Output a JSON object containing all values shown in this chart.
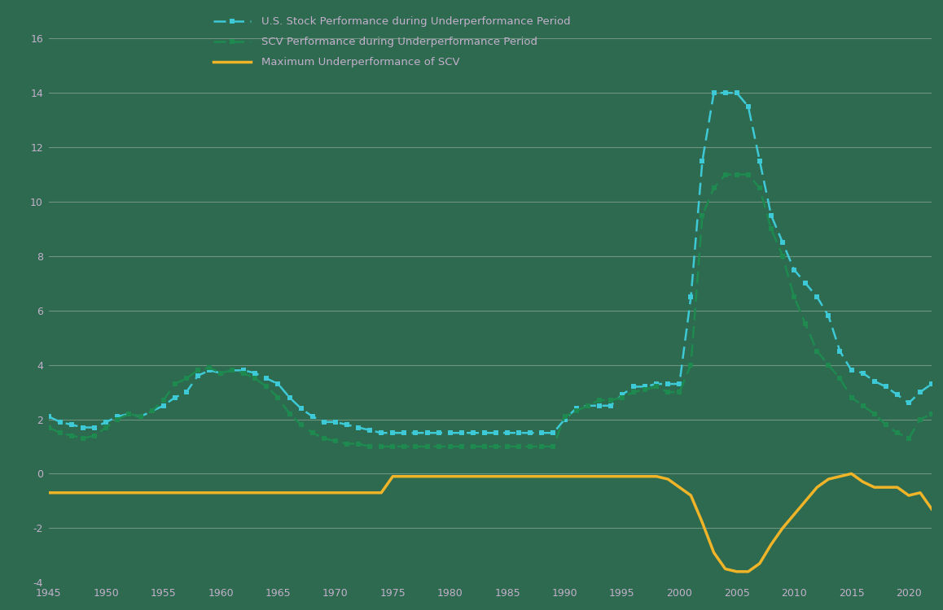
{
  "background_color": "#2d6a4f",
  "xlim": [
    1945,
    2022
  ],
  "ylim": [
    -4,
    17
  ],
  "yticks": [
    -4,
    -2,
    0,
    2,
    4,
    6,
    8,
    10,
    12,
    14,
    16
  ],
  "xticks": [
    1945,
    1950,
    1955,
    1960,
    1965,
    1970,
    1975,
    1980,
    1985,
    1990,
    1995,
    2000,
    2005,
    2010,
    2015,
    2020
  ],
  "us_stock_color": "#3ec9d6",
  "scv_color": "#1e8a50",
  "max_under_color": "#f0b429",
  "grid_color": "#a8b8a8",
  "text_color": "#c4b0cc",
  "legend_labels": [
    "U.S. Stock Performance during Underperformance Period",
    "SCV Performance during Underperformance Period",
    "Maximum Underperformance of SCV"
  ],
  "us_stock_x": [
    1945,
    1946,
    1947,
    1948,
    1949,
    1950,
    1951,
    1952,
    1953,
    1954,
    1955,
    1956,
    1957,
    1958,
    1959,
    1960,
    1961,
    1962,
    1963,
    1964,
    1965,
    1966,
    1967,
    1968,
    1969,
    1970,
    1971,
    1972,
    1973,
    1974,
    1975,
    1976,
    1977,
    1978,
    1979,
    1980,
    1981,
    1982,
    1983,
    1984,
    1985,
    1986,
    1987,
    1988,
    1989,
    1990,
    1991,
    1992,
    1993,
    1994,
    1995,
    1996,
    1997,
    1998,
    1999,
    2000,
    2001,
    2002,
    2003,
    2004,
    2005,
    2006,
    2007,
    2008,
    2009,
    2010,
    2011,
    2012,
    2013,
    2014,
    2015,
    2016,
    2017,
    2018,
    2019,
    2020,
    2021,
    2022
  ],
  "us_stock_y": [
    2.1,
    1.9,
    1.8,
    1.7,
    1.7,
    1.9,
    2.1,
    2.2,
    2.1,
    2.3,
    2.5,
    2.8,
    3.0,
    3.6,
    3.8,
    3.7,
    3.8,
    3.8,
    3.7,
    3.5,
    3.3,
    2.8,
    2.4,
    2.1,
    1.9,
    1.9,
    1.8,
    1.7,
    1.6,
    1.5,
    1.5,
    1.5,
    1.5,
    1.5,
    1.5,
    1.5,
    1.5,
    1.5,
    1.5,
    1.5,
    1.5,
    1.5,
    1.5,
    1.5,
    1.5,
    2.0,
    2.4,
    2.5,
    2.5,
    2.5,
    2.9,
    3.2,
    3.2,
    3.3,
    3.3,
    3.3,
    6.5,
    11.5,
    14.0,
    14.0,
    14.0,
    13.5,
    11.5,
    9.5,
    8.5,
    7.5,
    7.0,
    6.5,
    5.8,
    4.5,
    3.8,
    3.7,
    3.4,
    3.2,
    2.9,
    2.6,
    3.0,
    3.3
  ],
  "scv_x": [
    1945,
    1946,
    1947,
    1948,
    1949,
    1950,
    1951,
    1952,
    1953,
    1954,
    1955,
    1956,
    1957,
    1958,
    1959,
    1960,
    1961,
    1962,
    1963,
    1964,
    1965,
    1966,
    1967,
    1968,
    1969,
    1970,
    1971,
    1972,
    1973,
    1974,
    1975,
    1976,
    1977,
    1978,
    1979,
    1980,
    1981,
    1982,
    1983,
    1984,
    1985,
    1986,
    1987,
    1988,
    1989,
    1990,
    1991,
    1992,
    1993,
    1994,
    1995,
    1996,
    1997,
    1998,
    1999,
    2000,
    2001,
    2002,
    2003,
    2004,
    2005,
    2006,
    2007,
    2008,
    2009,
    2010,
    2011,
    2012,
    2013,
    2014,
    2015,
    2016,
    2017,
    2018,
    2019,
    2020,
    2021,
    2022
  ],
  "scv_y": [
    1.7,
    1.5,
    1.4,
    1.3,
    1.4,
    1.7,
    2.0,
    2.2,
    2.1,
    2.3,
    2.7,
    3.3,
    3.5,
    3.8,
    3.9,
    3.7,
    3.8,
    3.7,
    3.5,
    3.2,
    2.8,
    2.2,
    1.8,
    1.5,
    1.3,
    1.2,
    1.1,
    1.1,
    1.0,
    1.0,
    1.0,
    1.0,
    1.0,
    1.0,
    1.0,
    1.0,
    1.0,
    1.0,
    1.0,
    1.0,
    1.0,
    1.0,
    1.0,
    1.0,
    1.0,
    2.1,
    2.3,
    2.5,
    2.7,
    2.7,
    2.8,
    3.0,
    3.1,
    3.2,
    3.0,
    3.0,
    4.0,
    9.5,
    10.5,
    11.0,
    11.0,
    11.0,
    10.5,
    9.0,
    8.0,
    6.5,
    5.5,
    4.5,
    4.0,
    3.5,
    2.8,
    2.5,
    2.2,
    1.8,
    1.5,
    1.3,
    2.0,
    2.2
  ],
  "max_under_x": [
    1945,
    1946,
    1947,
    1948,
    1949,
    1950,
    1951,
    1952,
    1953,
    1954,
    1955,
    1956,
    1957,
    1958,
    1959,
    1960,
    1961,
    1962,
    1963,
    1964,
    1965,
    1966,
    1967,
    1968,
    1969,
    1970,
    1971,
    1972,
    1973,
    1974,
    1975,
    1976,
    1977,
    1978,
    1979,
    1980,
    1981,
    1982,
    1983,
    1984,
    1985,
    1986,
    1987,
    1988,
    1989,
    1990,
    1991,
    1992,
    1993,
    1994,
    1995,
    1996,
    1997,
    1998,
    1999,
    2000,
    2001,
    2002,
    2003,
    2004,
    2005,
    2006,
    2007,
    2008,
    2009,
    2010,
    2011,
    2012,
    2013,
    2014,
    2015,
    2016,
    2017,
    2018,
    2019,
    2020,
    2021,
    2022
  ],
  "max_under_y": [
    -0.7,
    -0.7,
    -0.7,
    -0.7,
    -0.7,
    -0.7,
    -0.7,
    -0.7,
    -0.7,
    -0.7,
    -0.7,
    -0.7,
    -0.7,
    -0.7,
    -0.7,
    -0.7,
    -0.7,
    -0.7,
    -0.7,
    -0.7,
    -0.7,
    -0.7,
    -0.7,
    -0.7,
    -0.7,
    -0.7,
    -0.7,
    -0.7,
    -0.7,
    -0.7,
    -0.1,
    -0.1,
    -0.1,
    -0.1,
    -0.1,
    -0.1,
    -0.1,
    -0.1,
    -0.1,
    -0.1,
    -0.1,
    -0.1,
    -0.1,
    -0.1,
    -0.1,
    -0.1,
    -0.1,
    -0.1,
    -0.1,
    -0.1,
    -0.1,
    -0.1,
    -0.1,
    -0.1,
    -0.2,
    -0.5,
    -0.8,
    -1.8,
    -2.9,
    -3.5,
    -3.6,
    -3.6,
    -3.3,
    -2.6,
    -2.0,
    -1.5,
    -1.0,
    -0.5,
    -0.2,
    -0.1,
    0.0,
    -0.3,
    -0.5,
    -0.5,
    -0.5,
    -0.8,
    -0.7,
    -1.3
  ]
}
